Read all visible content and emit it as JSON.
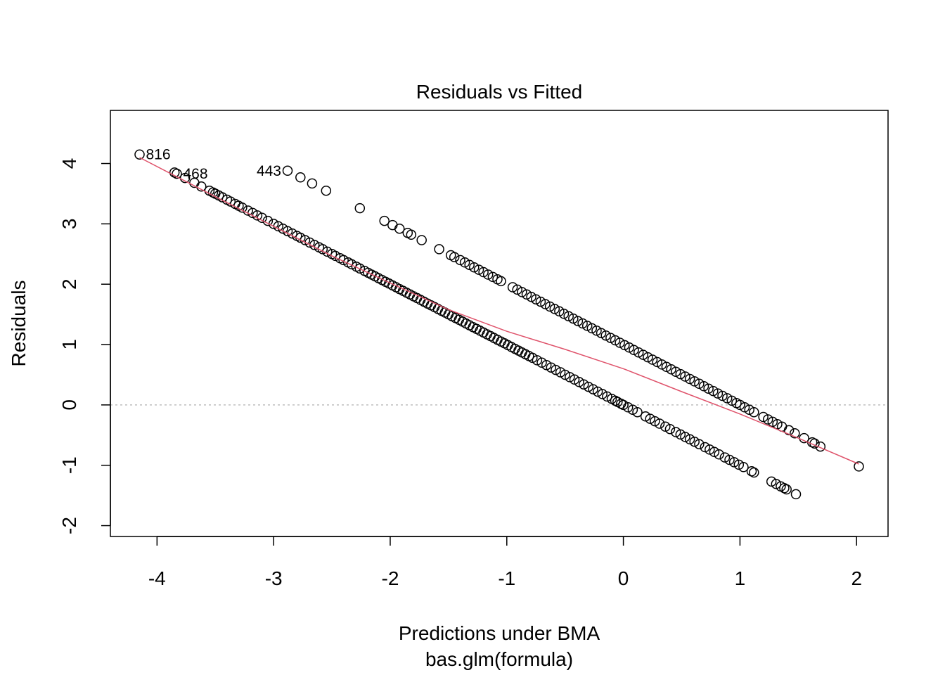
{
  "chart_data": {
    "type": "scatter",
    "title": "Residuals vs Fitted",
    "xlabel": "Predictions under BMA",
    "sublabel": "bas.glm(formula)",
    "ylabel": "Residuals",
    "xlim": [
      -4.4,
      2.27
    ],
    "ylim": [
      -2.18,
      4.88
    ],
    "x_ticks": [
      -4,
      -3,
      -2,
      -1,
      0,
      1,
      2
    ],
    "x_tick_labels": [
      "-4",
      "-3",
      "-2",
      "-1",
      "0",
      "1",
      "2"
    ],
    "y_ticks": [
      -2,
      -1,
      0,
      1,
      2,
      3,
      4
    ],
    "y_tick_labels": [
      "-2",
      "-1",
      "0",
      "1",
      "2",
      "3",
      "4"
    ],
    "reference_line_y": 0,
    "colors": {
      "points": "#000000",
      "smooth": "#DF536B",
      "reference": "#BEBEBE"
    },
    "series": [
      {
        "name": "",
        "points": [
          [
            -4.15,
            4.15
          ],
          [
            -3.85,
            3.85
          ],
          [
            -3.83,
            3.83
          ],
          [
            -3.76,
            3.76
          ],
          [
            -3.68,
            3.68
          ],
          [
            -3.62,
            3.62
          ],
          [
            -3.55,
            3.55
          ],
          [
            -3.52,
            3.52
          ],
          [
            -3.5,
            3.5
          ],
          [
            -3.47,
            3.47
          ],
          [
            -3.44,
            3.44
          ],
          [
            -3.4,
            3.4
          ],
          [
            -3.37,
            3.37
          ],
          [
            -3.33,
            3.33
          ],
          [
            -3.3,
            3.3
          ],
          [
            -3.27,
            3.27
          ],
          [
            -3.22,
            3.22
          ],
          [
            -3.18,
            3.18
          ],
          [
            -3.14,
            3.14
          ],
          [
            -3.1,
            3.1
          ],
          [
            -3.05,
            3.05
          ],
          [
            -3.0,
            3.0
          ],
          [
            -2.96,
            2.96
          ],
          [
            -2.92,
            2.92
          ],
          [
            -2.88,
            2.88
          ],
          [
            -2.84,
            2.84
          ],
          [
            -2.8,
            2.8
          ],
          [
            -2.77,
            2.77
          ],
          [
            -2.73,
            2.73
          ],
          [
            -2.69,
            2.69
          ],
          [
            -2.65,
            2.65
          ],
          [
            -2.61,
            2.61
          ],
          [
            -2.58,
            2.58
          ],
          [
            -2.54,
            2.54
          ],
          [
            -2.5,
            2.5
          ],
          [
            -2.47,
            2.47
          ],
          [
            -2.43,
            2.43
          ],
          [
            -2.4,
            2.4
          ],
          [
            -2.36,
            2.36
          ],
          [
            -2.33,
            2.33
          ],
          [
            -2.29,
            2.29
          ],
          [
            -2.26,
            2.26
          ],
          [
            -2.22,
            2.22
          ],
          [
            -2.19,
            2.19
          ],
          [
            -2.16,
            2.16
          ],
          [
            -2.13,
            2.13
          ],
          [
            -2.1,
            2.1
          ],
          [
            -2.07,
            2.07
          ],
          [
            -2.04,
            2.04
          ],
          [
            -2.01,
            2.01
          ],
          [
            -1.98,
            1.98
          ],
          [
            -1.95,
            1.95
          ],
          [
            -1.92,
            1.92
          ],
          [
            -1.89,
            1.89
          ],
          [
            -1.86,
            1.86
          ],
          [
            -1.83,
            1.83
          ],
          [
            -1.8,
            1.8
          ],
          [
            -1.77,
            1.77
          ],
          [
            -1.74,
            1.74
          ],
          [
            -1.71,
            1.71
          ],
          [
            -1.68,
            1.68
          ],
          [
            -1.65,
            1.65
          ],
          [
            -1.62,
            1.62
          ],
          [
            -1.59,
            1.59
          ],
          [
            -1.56,
            1.56
          ],
          [
            -1.53,
            1.53
          ],
          [
            -1.5,
            1.5
          ],
          [
            -1.47,
            1.47
          ],
          [
            -1.44,
            1.44
          ],
          [
            -1.41,
            1.41
          ],
          [
            -1.38,
            1.38
          ],
          [
            -1.35,
            1.35
          ],
          [
            -1.32,
            1.32
          ],
          [
            -1.29,
            1.29
          ],
          [
            -1.26,
            1.26
          ],
          [
            -1.23,
            1.23
          ],
          [
            -1.2,
            1.2
          ],
          [
            -1.17,
            1.17
          ],
          [
            -1.14,
            1.14
          ],
          [
            -1.11,
            1.11
          ],
          [
            -1.08,
            1.08
          ],
          [
            -1.05,
            1.05
          ],
          [
            -1.02,
            1.02
          ],
          [
            -0.99,
            0.99
          ],
          [
            -0.96,
            0.96
          ],
          [
            -0.93,
            0.93
          ],
          [
            -0.9,
            0.9
          ],
          [
            -0.87,
            0.87
          ],
          [
            -0.84,
            0.84
          ],
          [
            -0.81,
            0.81
          ],
          [
            -0.78,
            0.78
          ],
          [
            -0.74,
            0.74
          ],
          [
            -0.7,
            0.7
          ],
          [
            -0.66,
            0.66
          ],
          [
            -0.62,
            0.62
          ],
          [
            -0.58,
            0.58
          ],
          [
            -0.54,
            0.54
          ],
          [
            -0.5,
            0.5
          ],
          [
            -0.46,
            0.46
          ],
          [
            -0.42,
            0.42
          ],
          [
            -0.38,
            0.38
          ],
          [
            -0.34,
            0.34
          ],
          [
            -0.3,
            0.3
          ],
          [
            -0.26,
            0.26
          ],
          [
            -0.22,
            0.22
          ],
          [
            -0.18,
            0.18
          ],
          [
            -0.14,
            0.14
          ],
          [
            -0.1,
            0.1
          ],
          [
            -0.07,
            0.07
          ],
          [
            -0.05,
            0.05
          ],
          [
            -0.02,
            0.02
          ],
          [
            0.0,
            0.0
          ],
          [
            0.04,
            -0.04
          ],
          [
            0.08,
            -0.08
          ],
          [
            0.12,
            -0.12
          ],
          [
            0.19,
            -0.19
          ],
          [
            0.23,
            -0.23
          ],
          [
            0.27,
            -0.27
          ],
          [
            0.31,
            -0.31
          ],
          [
            0.36,
            -0.36
          ],
          [
            0.4,
            -0.4
          ],
          [
            0.45,
            -0.45
          ],
          [
            0.49,
            -0.49
          ],
          [
            0.53,
            -0.53
          ],
          [
            0.57,
            -0.57
          ],
          [
            0.61,
            -0.61
          ],
          [
            0.65,
            -0.65
          ],
          [
            0.7,
            -0.7
          ],
          [
            0.74,
            -0.74
          ],
          [
            0.78,
            -0.78
          ],
          [
            0.82,
            -0.82
          ],
          [
            0.87,
            -0.87
          ],
          [
            0.91,
            -0.91
          ],
          [
            0.95,
            -0.95
          ],
          [
            0.99,
            -0.99
          ],
          [
            1.03,
            -1.03
          ],
          [
            1.1,
            -1.1
          ],
          [
            1.12,
            -1.12
          ],
          [
            1.27,
            -1.27
          ],
          [
            1.31,
            -1.31
          ],
          [
            1.35,
            -1.35
          ],
          [
            1.38,
            -1.38
          ],
          [
            1.4,
            -1.4
          ],
          [
            1.48,
            -1.48
          ],
          [
            -2.88,
            3.88
          ],
          [
            -2.77,
            3.77
          ],
          [
            -2.67,
            3.67
          ],
          [
            -2.55,
            3.55
          ],
          [
            -2.26,
            3.26
          ],
          [
            -2.05,
            3.05
          ],
          [
            -1.98,
            2.98
          ],
          [
            -1.92,
            2.92
          ],
          [
            -1.85,
            2.85
          ],
          [
            -1.82,
            2.82
          ],
          [
            -1.73,
            2.73
          ],
          [
            -1.58,
            2.58
          ],
          [
            -1.48,
            2.48
          ],
          [
            -1.45,
            2.45
          ],
          [
            -1.4,
            2.4
          ],
          [
            -1.36,
            2.36
          ],
          [
            -1.32,
            2.32
          ],
          [
            -1.28,
            2.28
          ],
          [
            -1.24,
            2.24
          ],
          [
            -1.2,
            2.2
          ],
          [
            -1.16,
            2.16
          ],
          [
            -1.12,
            2.12
          ],
          [
            -1.08,
            2.08
          ],
          [
            -1.05,
            2.05
          ],
          [
            -0.95,
            1.95
          ],
          [
            -0.91,
            1.91
          ],
          [
            -0.87,
            1.87
          ],
          [
            -0.83,
            1.83
          ],
          [
            -0.79,
            1.79
          ],
          [
            -0.75,
            1.75
          ],
          [
            -0.71,
            1.71
          ],
          [
            -0.67,
            1.67
          ],
          [
            -0.63,
            1.63
          ],
          [
            -0.59,
            1.59
          ],
          [
            -0.55,
            1.55
          ],
          [
            -0.51,
            1.51
          ],
          [
            -0.47,
            1.47
          ],
          [
            -0.43,
            1.43
          ],
          [
            -0.39,
            1.39
          ],
          [
            -0.35,
            1.35
          ],
          [
            -0.31,
            1.31
          ],
          [
            -0.27,
            1.27
          ],
          [
            -0.23,
            1.23
          ],
          [
            -0.19,
            1.19
          ],
          [
            -0.15,
            1.15
          ],
          [
            -0.11,
            1.11
          ],
          [
            -0.07,
            1.07
          ],
          [
            -0.03,
            1.03
          ],
          [
            0.01,
            0.99
          ],
          [
            0.05,
            0.95
          ],
          [
            0.09,
            0.91
          ],
          [
            0.13,
            0.87
          ],
          [
            0.17,
            0.83
          ],
          [
            0.21,
            0.79
          ],
          [
            0.25,
            0.75
          ],
          [
            0.29,
            0.71
          ],
          [
            0.33,
            0.67
          ],
          [
            0.37,
            0.63
          ],
          [
            0.41,
            0.59
          ],
          [
            0.45,
            0.55
          ],
          [
            0.49,
            0.51
          ],
          [
            0.53,
            0.47
          ],
          [
            0.57,
            0.43
          ],
          [
            0.61,
            0.39
          ],
          [
            0.65,
            0.35
          ],
          [
            0.69,
            0.31
          ],
          [
            0.73,
            0.27
          ],
          [
            0.77,
            0.23
          ],
          [
            0.81,
            0.19
          ],
          [
            0.85,
            0.15
          ],
          [
            0.89,
            0.11
          ],
          [
            0.93,
            0.07
          ],
          [
            0.97,
            0.03
          ],
          [
            1.0,
            0.0
          ],
          [
            1.04,
            -0.04
          ],
          [
            1.08,
            -0.08
          ],
          [
            1.12,
            -0.12
          ],
          [
            1.2,
            -0.2
          ],
          [
            1.24,
            -0.24
          ],
          [
            1.28,
            -0.28
          ],
          [
            1.32,
            -0.32
          ],
          [
            1.36,
            -0.36
          ],
          [
            1.42,
            -0.42
          ],
          [
            1.47,
            -0.47
          ],
          [
            1.55,
            -0.55
          ],
          [
            1.62,
            -0.62
          ],
          [
            1.64,
            -0.64
          ],
          [
            1.69,
            -0.69
          ],
          [
            2.02,
            -1.02
          ]
        ]
      }
    ],
    "smooth_line": [
      [
        -4.15,
        4.1
      ],
      [
        -3.5,
        3.45
      ],
      [
        -3.0,
        2.96
      ],
      [
        -2.5,
        2.47
      ],
      [
        -2.0,
        2.02
      ],
      [
        -1.5,
        1.58
      ],
      [
        -1.0,
        1.22
      ],
      [
        -0.5,
        0.92
      ],
      [
        0.0,
        0.6
      ],
      [
        0.5,
        0.22
      ],
      [
        1.0,
        -0.15
      ],
      [
        1.5,
        -0.55
      ],
      [
        2.02,
        -0.98
      ]
    ],
    "point_labels": [
      {
        "text": "816",
        "x": -4.15,
        "y": 4.15,
        "pos": "right"
      },
      {
        "text": "468",
        "x": -3.83,
        "y": 3.83,
        "pos": "right"
      },
      {
        "text": "443",
        "x": -2.88,
        "y": 3.88,
        "pos": "left"
      }
    ]
  }
}
